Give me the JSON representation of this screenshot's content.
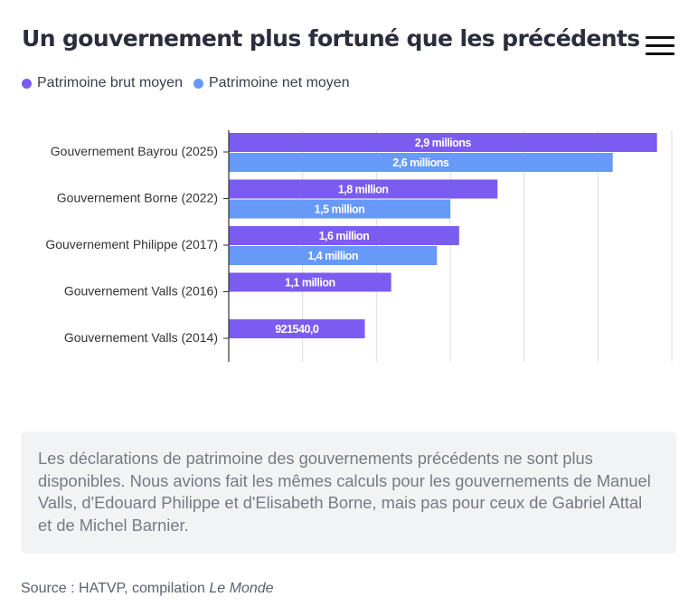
{
  "title": "Un gouvernement plus fortuné que les précédents",
  "legend": {
    "gross": "Patrimoine brut moyen",
    "net": "Patrimoine net moyen"
  },
  "colors": {
    "gross": "#7b5cf0",
    "net": "#6699f8",
    "grid": "#dcdcdc",
    "axis": "#333333"
  },
  "chart_data": {
    "type": "bar",
    "orientation": "horizontal",
    "title": "Un gouvernement plus fortuné que les précédents",
    "categories": [
      "Gouvernement Bayrou (2025)",
      "Gouvernement Borne (2022)",
      "Gouvernement Philippe (2017)",
      "Gouvernement Valls (2016)",
      "Gouvernement Valls (2014)"
    ],
    "series": [
      {
        "name": "Patrimoine brut moyen",
        "values": [
          2900000,
          1820000,
          1560000,
          1100000,
          921540
        ],
        "labels": [
          "2,9 millions",
          "1,8 million",
          "1,6 million",
          "1,1 million",
          "921540,0"
        ]
      },
      {
        "name": "Patrimoine net moyen",
        "values": [
          2600000,
          1500000,
          1410000,
          null,
          null
        ],
        "labels": [
          "2,6 millions",
          "1,5 million",
          "1,4 million",
          null,
          null
        ]
      }
    ],
    "xlim": [
      0,
      3000000
    ],
    "grid": true,
    "legend": "top-left"
  },
  "note": "Les déclarations de patrimoine des gouvernements précédents ne sont plus disponibles. Nous avions fait les mêmes calculs pour les gouvernements de Manuel Valls, d'Edouard Philippe et d'Elisabeth Borne, mais pas pour ceux de Gabriel Attal et de Michel Barnier.",
  "source": {
    "prefix": "Source : HATVP, compilation ",
    "publication": "Le Monde"
  }
}
